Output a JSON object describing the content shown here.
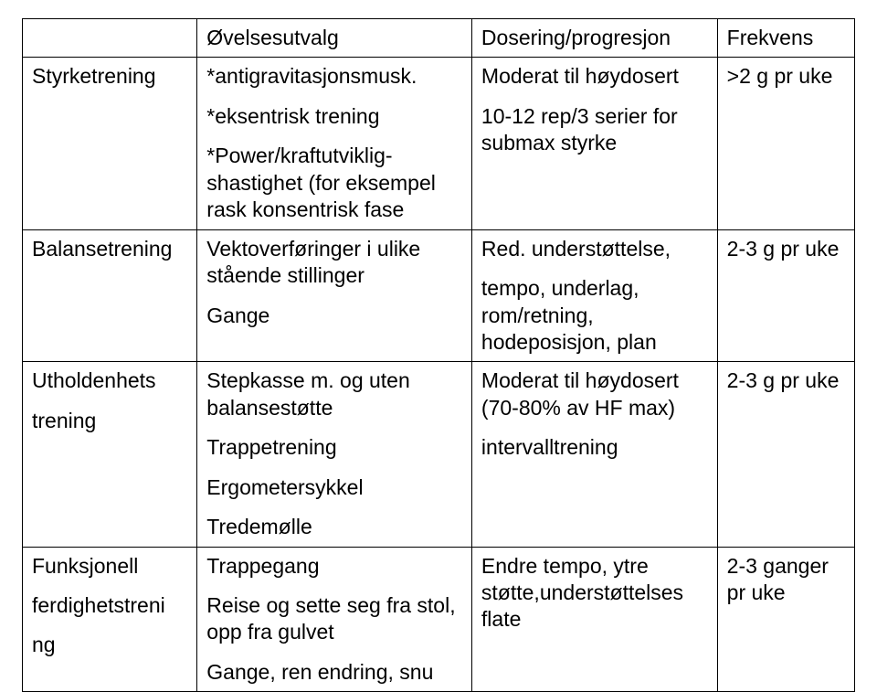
{
  "header": {
    "col1": "",
    "col2": "Øvelsesutvalg",
    "col3": "Dosering/progresjon",
    "col4": "Frekvens"
  },
  "rows": [
    {
      "label": "Styrketrening",
      "exercises": [
        "*antigravitasjonsmusk.",
        "*eksentrisk trening",
        "*Power/kraftutviklig-shastighet (for eksempel rask konsentrisk fase"
      ],
      "dosage": [
        "Moderat til høydosert",
        "10-12 rep/3 serier for submax styrke"
      ],
      "freq": ">2 g pr uke"
    },
    {
      "label": "Balansetrening",
      "exercises": [
        "Vektoverføringer i ulike stående stillinger",
        "Gange"
      ],
      "dosage": [
        "Red. understøttelse,",
        "tempo, underlag, rom/retning, hodeposisjon, plan"
      ],
      "freq": "2-3 g pr uke"
    },
    {
      "label_lines": [
        "Utholdenhets",
        "trening"
      ],
      "exercises": [
        "Stepkasse m. og uten balansestøtte",
        "Trappetrening",
        "Ergometersykkel",
        "Tredemølle"
      ],
      "dosage": [
        "Moderat til høydosert (70-80% av HF max)",
        " intervalltrening"
      ],
      "freq": "2-3 g pr uke"
    },
    {
      "label_lines": [
        "Funksjonell",
        "ferdighetstreni",
        "ng"
      ],
      "exercises": [
        "Trappegang",
        "Reise og sette seg fra stol, opp fra gulvet",
        "Gange, ren endring, snu"
      ],
      "dosage": [
        "Endre tempo, ytre støtte,understøttelses flate"
      ],
      "freq": "2-3 ganger pr uke"
    }
  ]
}
